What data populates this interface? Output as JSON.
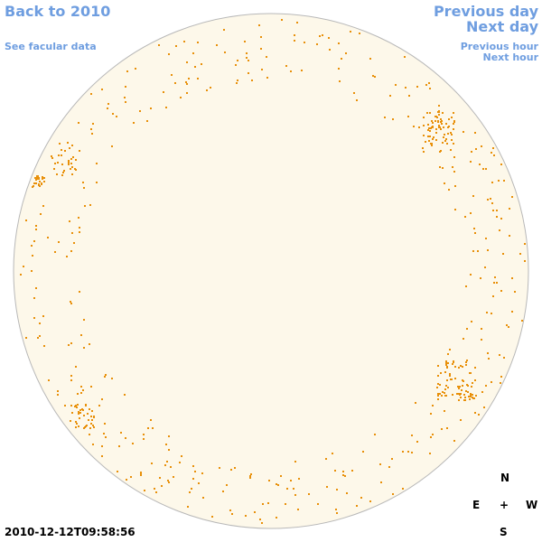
{
  "links": {
    "back": "Back to 2010",
    "facular": "See facular data",
    "previous_day": "Previous day",
    "next_day": "Next day",
    "previous_hour": "Previous hour",
    "next_hour": "Next hour"
  },
  "timestamp": "2010-12-12T09:58:56",
  "compass": {
    "north": "N",
    "east": "E",
    "center": "+",
    "west": "W",
    "south": "S"
  }
}
